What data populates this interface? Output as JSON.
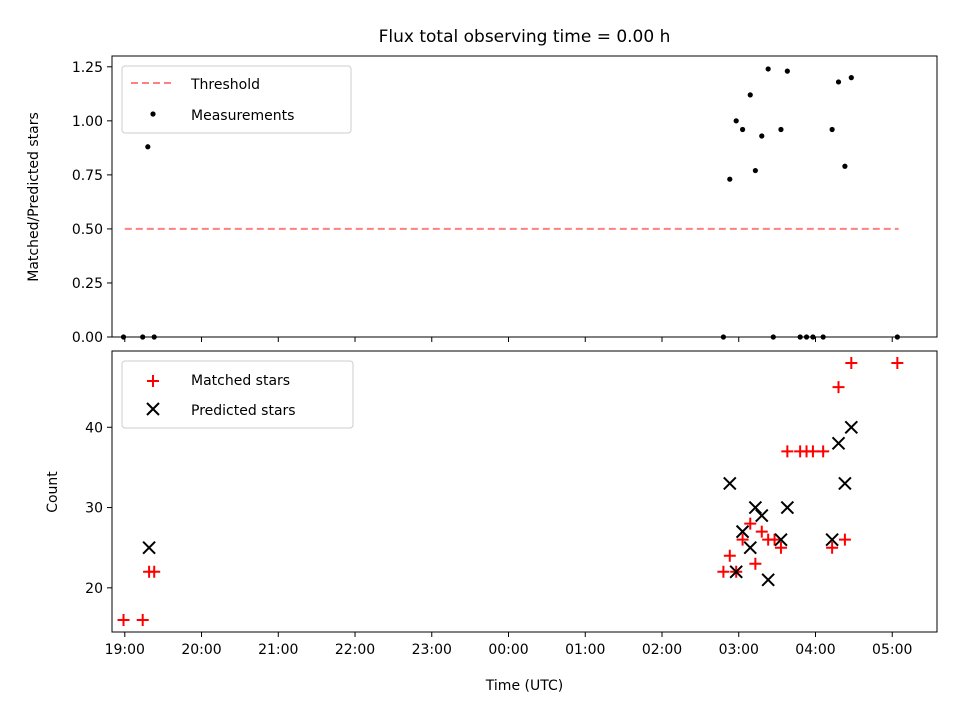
{
  "figure": {
    "title": "Flux total observing time = 0.00 h"
  },
  "chart_data": [
    {
      "type": "scatter",
      "title": "Flux total observing time = 0.00 h",
      "xlabel": "",
      "ylabel": "Matched/Predicted stars",
      "xlim": [
        "2019-01-01T18:50",
        "2019-01-02T05:35"
      ],
      "ylim": [
        0,
        1.3
      ],
      "yticks": [
        0.0,
        0.25,
        0.5,
        0.75,
        1.0,
        1.25
      ],
      "ytick_labels": [
        "0.00",
        "0.25",
        "0.50",
        "0.75",
        "1.00",
        "1.25"
      ],
      "grid": false,
      "legend": "upper left",
      "series": [
        {
          "name": "Threshold",
          "kind": "line",
          "style": "dashed",
          "color": "#ff8080",
          "points": [
            [
              "2019-01-01T19:00",
              0.5
            ],
            [
              "2019-01-02T05:05",
              0.5
            ]
          ]
        },
        {
          "name": "Measurements",
          "kind": "scatter",
          "marker": "dot",
          "color": "#000000",
          "points": [
            [
              "2019-01-01T18:59",
              0.0
            ],
            [
              "2019-01-01T19:14",
              0.0
            ],
            [
              "2019-01-01T19:18",
              0.88
            ],
            [
              "2019-01-01T19:23",
              0.0
            ],
            [
              "2019-01-02T02:48",
              0.0
            ],
            [
              "2019-01-02T02:53",
              0.73
            ],
            [
              "2019-01-02T02:58",
              1.0
            ],
            [
              "2019-01-02T03:03",
              0.96
            ],
            [
              "2019-01-02T03:09",
              1.12
            ],
            [
              "2019-01-02T03:13",
              0.77
            ],
            [
              "2019-01-02T03:18",
              0.93
            ],
            [
              "2019-01-02T03:23",
              1.24
            ],
            [
              "2019-01-02T03:27",
              0.0
            ],
            [
              "2019-01-02T03:33",
              0.96
            ],
            [
              "2019-01-02T03:38",
              1.23
            ],
            [
              "2019-01-02T03:48",
              0.0
            ],
            [
              "2019-01-02T03:53",
              0.0
            ],
            [
              "2019-01-02T03:58",
              0.0
            ],
            [
              "2019-01-02T04:06",
              0.0
            ],
            [
              "2019-01-02T04:13",
              0.96
            ],
            [
              "2019-01-02T04:18",
              1.18
            ],
            [
              "2019-01-02T04:23",
              0.79
            ],
            [
              "2019-01-02T04:28",
              1.2
            ],
            [
              "2019-01-02T05:04",
              0.0
            ]
          ]
        }
      ]
    },
    {
      "type": "scatter",
      "xlabel": "Time (UTC)",
      "ylabel": "Count",
      "xlim": [
        "2019-01-01T18:50",
        "2019-01-02T05:35"
      ],
      "ylim": [
        14.5,
        49.5
      ],
      "yticks": [
        20,
        30,
        40
      ],
      "xticks": [
        "19:00",
        "20:00",
        "21:00",
        "22:00",
        "23:00",
        "00:00",
        "01:00",
        "02:00",
        "03:00",
        "04:00",
        "05:00"
      ],
      "grid": false,
      "legend": "upper left",
      "series": [
        {
          "name": "Matched stars",
          "marker": "plus",
          "color": "#ff0000",
          "points": [
            [
              "2019-01-01T18:59",
              16
            ],
            [
              "2019-01-01T19:14",
              16
            ],
            [
              "2019-01-01T19:19",
              22
            ],
            [
              "2019-01-01T19:23",
              22
            ],
            [
              "2019-01-02T02:48",
              22
            ],
            [
              "2019-01-02T02:53",
              24
            ],
            [
              "2019-01-02T02:58",
              22
            ],
            [
              "2019-01-02T03:03",
              26
            ],
            [
              "2019-01-02T03:09",
              28
            ],
            [
              "2019-01-02T03:13",
              23
            ],
            [
              "2019-01-02T03:18",
              27
            ],
            [
              "2019-01-02T03:23",
              26
            ],
            [
              "2019-01-02T03:28",
              26
            ],
            [
              "2019-01-02T03:33",
              25
            ],
            [
              "2019-01-02T03:38",
              37
            ],
            [
              "2019-01-02T03:48",
              37
            ],
            [
              "2019-01-02T03:53",
              37
            ],
            [
              "2019-01-02T03:58",
              37
            ],
            [
              "2019-01-02T04:06",
              37
            ],
            [
              "2019-01-02T04:13",
              25
            ],
            [
              "2019-01-02T04:18",
              45
            ],
            [
              "2019-01-02T04:23",
              26
            ],
            [
              "2019-01-02T04:28",
              48
            ],
            [
              "2019-01-02T05:04",
              48
            ]
          ]
        },
        {
          "name": "Predicted stars",
          "marker": "x",
          "color": "#000000",
          "points": [
            [
              "2019-01-01T19:19",
              25
            ],
            [
              "2019-01-02T02:53",
              33
            ],
            [
              "2019-01-02T02:58",
              22
            ],
            [
              "2019-01-02T03:03",
              27
            ],
            [
              "2019-01-02T03:09",
              25
            ],
            [
              "2019-01-02T03:13",
              30
            ],
            [
              "2019-01-02T03:18",
              29
            ],
            [
              "2019-01-02T03:23",
              21
            ],
            [
              "2019-01-02T03:33",
              26
            ],
            [
              "2019-01-02T03:38",
              30
            ],
            [
              "2019-01-02T04:13",
              26
            ],
            [
              "2019-01-02T04:18",
              38
            ],
            [
              "2019-01-02T04:23",
              33
            ],
            [
              "2019-01-02T04:28",
              40
            ]
          ]
        }
      ]
    }
  ]
}
